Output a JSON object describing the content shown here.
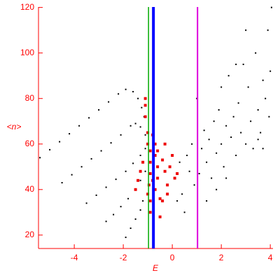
{
  "chart_data": {
    "type": "scatter",
    "xlabel": "E",
    "ylabel": "<n>",
    "xlim": [
      -5.46,
      4.11
    ],
    "ylim": [
      14.1,
      120.2
    ],
    "xticks": [
      -4,
      -2,
      0,
      2,
      4
    ],
    "yticks": [
      20,
      40,
      60,
      80,
      100,
      120
    ],
    "axis_color": "#ff0000",
    "vlines": [
      {
        "x": -0.97,
        "color": "#00aa00",
        "width": 1.5
      },
      {
        "x": -0.77,
        "color": "#0000ff",
        "width": 4
      },
      {
        "x": 1.03,
        "color": "#dd00dd",
        "width": 2
      }
    ],
    "series": [
      {
        "color": "#000000",
        "marker_size": 2,
        "x": [
          -5.4,
          -5.0,
          -4.6,
          -4.2,
          -3.8,
          -3.4,
          -3.0,
          -2.6,
          -2.2,
          -1.9,
          -1.6,
          -1.4,
          -1.25,
          -1.15,
          -4.5,
          -4.1,
          -3.7,
          -3.3,
          -2.9,
          -2.5,
          -2.1,
          -1.7,
          -1.5,
          -1.3,
          -1.1,
          -3.5,
          -3.1,
          -2.7,
          -2.3,
          -1.9,
          -1.6,
          -1.3,
          -1.1,
          -2.7,
          -2.4,
          -2.1,
          -1.8,
          -1.5,
          -1.3,
          -1.1,
          -1.9,
          -1.7,
          -1.5,
          -1.3,
          -1.2,
          0.1,
          0.3,
          0.4,
          0.6,
          0.7,
          0.8,
          0.9,
          1.0,
          1.1,
          1.2,
          1.3,
          1.4,
          1.5,
          1.6,
          1.7,
          1.8,
          1.9,
          2.0,
          2.1,
          2.2,
          2.3,
          2.4,
          2.5,
          2.6,
          2.7,
          2.8,
          2.9,
          3.0,
          3.1,
          3.2,
          3.3,
          3.4,
          3.5,
          3.6,
          3.7,
          3.8,
          3.9,
          4.0,
          4.05,
          3.95,
          3.5,
          2.2,
          1.8,
          0.5,
          3.0,
          2.0,
          2.6,
          0.2,
          1.4,
          3.7
        ],
        "y": [
          54,
          57.5,
          61,
          64.5,
          68,
          71.5,
          75,
          78.5,
          82,
          84,
          83,
          80,
          76,
          72,
          43,
          46.5,
          50,
          53.5,
          57,
          60.5,
          64,
          68,
          69,
          67.5,
          64,
          34,
          37.5,
          41,
          44.5,
          48,
          51.5,
          55,
          58,
          26,
          29,
          32.5,
          36,
          40,
          44,
          48,
          19,
          23,
          27,
          31,
          35,
          45,
          52,
          38,
          55,
          48,
          60,
          42,
          80,
          47,
          58,
          66,
          52,
          62,
          45,
          70,
          56,
          75,
          60,
          50,
          68,
          90,
          63,
          72,
          55,
          78,
          65,
          95,
          60,
          85,
          70,
          58,
          100,
          75,
          65,
          88,
          80,
          110,
          92,
          120,
          72,
          62,
          45,
          40,
          30,
          110,
          85,
          95,
          35,
          35,
          58
        ]
      },
      {
        "color": "#ee0000",
        "marker_size": 4,
        "x": [
          -1.1,
          -1.1,
          -1.1,
          -1.0,
          -1.0,
          -0.9,
          -0.9,
          -0.9,
          -0.95,
          -1.0,
          -0.9,
          -0.8,
          -0.7,
          -0.7,
          -0.6,
          -0.6,
          -0.7,
          -0.5,
          -0.4,
          -0.4,
          -0.3,
          -0.3,
          -0.2,
          -0.1,
          -0.2,
          0.0,
          0.1,
          0.2,
          -0.5,
          -0.9,
          -1.2,
          -1.3,
          -1.4,
          -1.5,
          -0.6,
          -0.8
        ],
        "y": [
          80,
          77,
          72,
          65,
          60,
          57,
          52,
          47,
          42,
          38,
          30,
          64,
          60,
          55,
          50,
          45,
          40,
          36,
          35,
          53,
          60,
          48,
          42,
          50,
          38,
          55,
          45,
          47,
          28,
          35,
          52,
          48,
          44,
          40,
          57,
          44
        ]
      }
    ]
  }
}
